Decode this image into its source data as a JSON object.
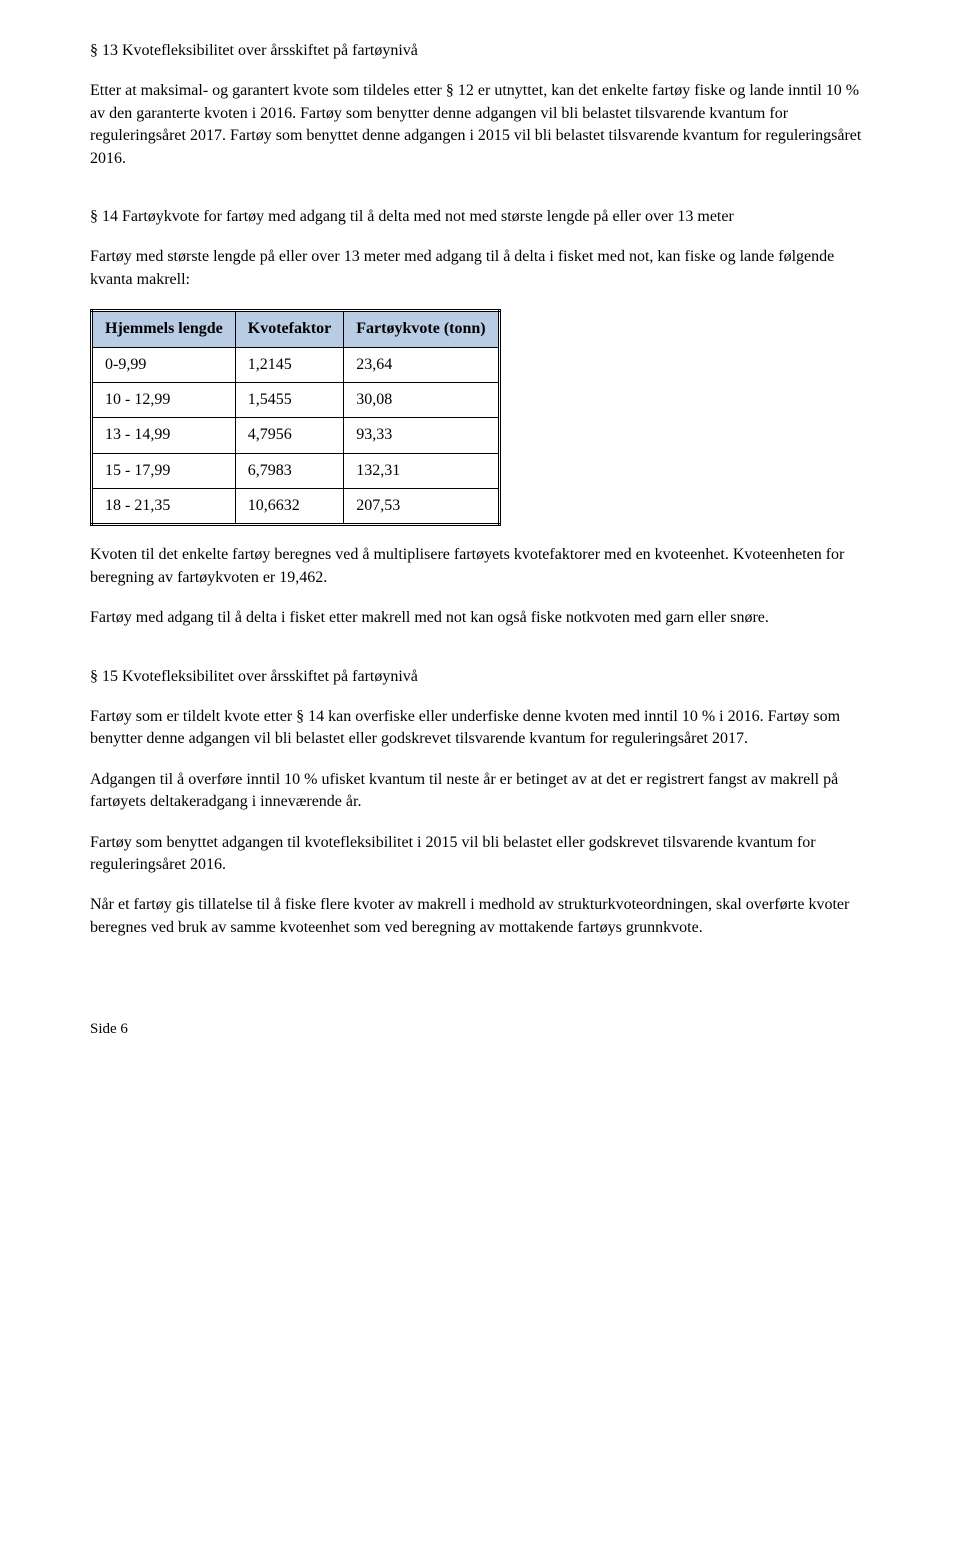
{
  "s13": {
    "title": "§ 13 Kvotefleksibilitet over årsskiftet på fartøynivå",
    "p1": "Etter at maksimal- og garantert kvote som tildeles etter § 12 er utnyttet, kan det enkelte fartøy fiske og lande inntil 10 % av den garanterte kvoten i 2016. Fartøy som benytter denne adgangen vil bli belastet tilsvarende kvantum for reguleringsåret 2017. Fartøy som benyttet denne adgangen i 2015 vil bli belastet tilsvarende kvantum for reguleringsåret 2016."
  },
  "s14": {
    "title": "§ 14 Fartøykvote for fartøy med adgang til å delta med not med største lengde på eller over 13 meter",
    "p1": "Fartøy med største lengde på eller over 13 meter med adgang til å delta i fisket med not, kan fiske og lande følgende kvanta makrell:",
    "table": {
      "columns": [
        "Hjemmels lengde",
        "Kvotefaktor",
        "Fartøykvote (tonn)"
      ],
      "rows": [
        [
          "0-9,99",
          "1,2145",
          "23,64"
        ],
        [
          "10 - 12,99",
          "1,5455",
          "30,08"
        ],
        [
          "13 - 14,99",
          "4,7956",
          "93,33"
        ],
        [
          "15 - 17,99",
          "6,7983",
          "132,31"
        ],
        [
          "18 - 21,35",
          "10,6632",
          "207,53"
        ]
      ],
      "header_bg": "#b8cde4",
      "border_color": "#000000"
    },
    "p2": "Kvoten til det enkelte fartøy beregnes ved å multiplisere fartøyets kvotefaktorer med en kvoteenhet. Kvoteenheten for beregning av fartøykvoten er 19,462.",
    "p3": "Fartøy med adgang til å delta i fisket etter makrell med not kan også fiske notkvoten med garn eller snøre."
  },
  "s15": {
    "title": "§ 15 Kvotefleksibilitet over årsskiftet på fartøynivå",
    "p1": "Fartøy som er tildelt kvote etter § 14 kan overfiske eller underfiske denne kvoten med inntil 10 % i 2016. Fartøy som benytter denne adgangen vil bli belastet eller godskrevet tilsvarende kvantum for reguleringsåret 2017.",
    "p2": "Adgangen til å overføre inntil 10 % ufisket kvantum til neste år er betinget av at det er registrert fangst av makrell på fartøyets deltakeradgang i inneværende år.",
    "p3": "Fartøy som benyttet adgangen til kvotefleksibilitet i 2015 vil bli belastet eller godskrevet tilsvarende kvantum for reguleringsåret 2016.",
    "p4": "Når et fartøy gis tillatelse til å fiske flere kvoter av makrell i medhold av strukturkvoteordningen, skal overførte kvoter beregnes ved bruk av samme kvoteenhet som ved beregning av mottakende fartøys grunnkvote."
  },
  "footer": {
    "text": "Side  6"
  }
}
